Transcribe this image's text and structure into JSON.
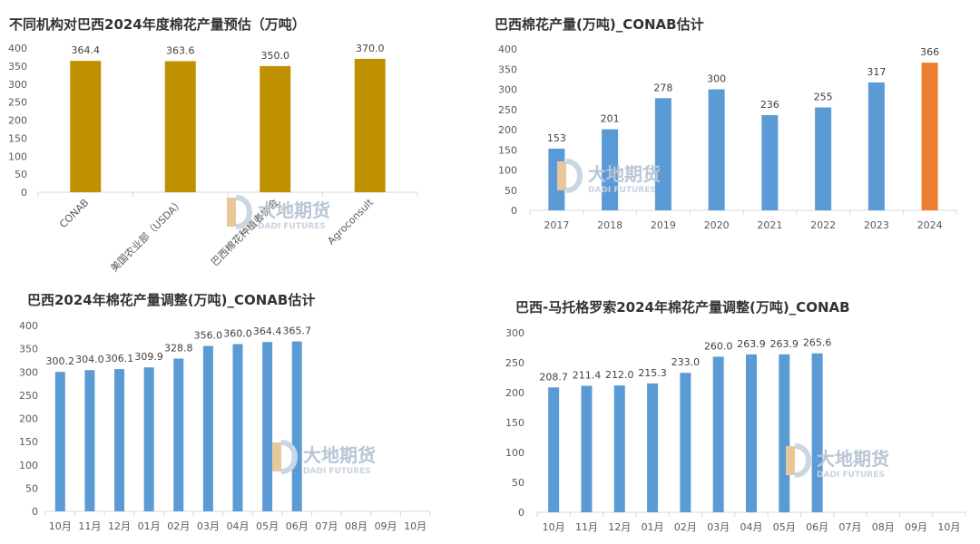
{
  "chart_data": [
    {
      "type": "bar",
      "title": "不同机构对巴西2024年度棉花产量预估（万吨）",
      "categories": [
        "CONAB",
        "美国农业部（USDA）",
        "巴西棉花种植者协会",
        "Agroconsult"
      ],
      "values": [
        364.4,
        363.6,
        350.0,
        370.0
      ],
      "value_labels": [
        "364.4",
        "363.6",
        "350.0",
        "370.0"
      ],
      "yticks": [
        "0",
        "50",
        "100",
        "150",
        "200",
        "250",
        "300",
        "350",
        "400"
      ],
      "ylim": [
        0,
        400
      ],
      "xlabel": "",
      "ylabel": "",
      "colors": [
        "#bf9000"
      ],
      "grid": false
    },
    {
      "type": "bar",
      "title": "巴西棉花产量(万吨)_CONAB估计",
      "categories": [
        "2017",
        "2018",
        "2019",
        "2020",
        "2021",
        "2022",
        "2023",
        "2024"
      ],
      "values": [
        153,
        201,
        278,
        300,
        236,
        255,
        317,
        366
      ],
      "value_labels": [
        "153",
        "201",
        "278",
        "300",
        "236",
        "255",
        "317",
        "366"
      ],
      "yticks": [
        "0",
        "50",
        "100",
        "150",
        "200",
        "250",
        "300",
        "350",
        "400"
      ],
      "ylim": [
        0,
        400
      ],
      "xlabel": "",
      "ylabel": "",
      "colors": [
        "#5b9bd5",
        "#5b9bd5",
        "#5b9bd5",
        "#5b9bd5",
        "#5b9bd5",
        "#5b9bd5",
        "#5b9bd5",
        "#ed7d31"
      ],
      "grid": false
    },
    {
      "type": "bar",
      "title": "巴西2024年棉花产量调整(万吨)_CONAB估计",
      "categories": [
        "10月",
        "11月",
        "12月",
        "01月",
        "02月",
        "03月",
        "04月",
        "05月",
        "06月",
        "07月",
        "08月",
        "09月",
        "10月"
      ],
      "values": [
        300.2,
        304.0,
        306.1,
        309.9,
        328.8,
        356.0,
        360.0,
        364.4,
        365.7,
        null,
        null,
        null,
        null
      ],
      "value_labels": [
        "300.2",
        "304.0",
        "306.1",
        "309.9",
        "328.8",
        "356.0",
        "360.0",
        "364.4",
        "365.7",
        "",
        "",
        "",
        ""
      ],
      "yticks": [
        "0",
        "50",
        "100",
        "150",
        "200",
        "250",
        "300",
        "350",
        "400"
      ],
      "ylim": [
        0,
        400
      ],
      "xlabel": "",
      "ylabel": "",
      "colors": [
        "#5b9bd5"
      ],
      "grid": false
    },
    {
      "type": "bar",
      "title": "巴西-马托格罗索2024年棉花产量调整(万吨)_CONAB",
      "categories": [
        "10月",
        "11月",
        "12月",
        "01月",
        "02月",
        "03月",
        "04月",
        "05月",
        "06月",
        "07月",
        "08月",
        "09月",
        "10月"
      ],
      "values": [
        208.7,
        211.4,
        212.0,
        215.3,
        233.0,
        260.0,
        263.9,
        263.9,
        265.6,
        null,
        null,
        null,
        null
      ],
      "value_labels": [
        "208.7",
        "211.4",
        "212.0",
        "215.3",
        "233.0",
        "260.0",
        "263.9",
        "263.9",
        "265.6",
        "",
        "",
        "",
        ""
      ],
      "yticks": [
        "0",
        "50",
        "100",
        "150",
        "200",
        "250",
        "300"
      ],
      "ylim": [
        0,
        300
      ],
      "xlabel": "",
      "ylabel": "",
      "colors": [
        "#5b9bd5"
      ],
      "grid": false
    }
  ],
  "watermark": {
    "name": "大地期货",
    "sub": "DADI FUTURES"
  }
}
